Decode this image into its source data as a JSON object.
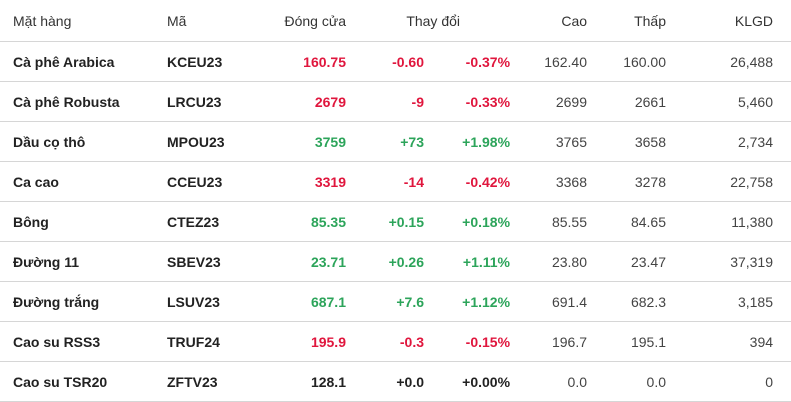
{
  "headers": {
    "name": "Mặt hàng",
    "code": "Mã",
    "close": "Đóng cửa",
    "change": "Thay đổi",
    "high": "Cao",
    "low": "Thấp",
    "volume": "KLGD"
  },
  "colors": {
    "up": "#2ca45a",
    "down": "#e0163d",
    "flat": "#222222"
  },
  "rows": [
    {
      "name": "Cà phê Arabica",
      "code": "KCEU23",
      "close": "160.75",
      "change": "-0.60",
      "pct": "-0.37%",
      "high": "162.40",
      "low": "160.00",
      "volume": "26,488",
      "dir": "down"
    },
    {
      "name": "Cà phê Robusta",
      "code": "LRCU23",
      "close": "2679",
      "change": "-9",
      "pct": "-0.33%",
      "high": "2699",
      "low": "2661",
      "volume": "5,460",
      "dir": "down"
    },
    {
      "name": "Dầu cọ thô",
      "code": "MPOU23",
      "close": "3759",
      "change": "+73",
      "pct": "+1.98%",
      "high": "3765",
      "low": "3658",
      "volume": "2,734",
      "dir": "up"
    },
    {
      "name": "Ca cao",
      "code": "CCEU23",
      "close": "3319",
      "change": "-14",
      "pct": "-0.42%",
      "high": "3368",
      "low": "3278",
      "volume": "22,758",
      "dir": "down"
    },
    {
      "name": "Bông",
      "code": "CTEZ23",
      "close": "85.35",
      "change": "+0.15",
      "pct": "+0.18%",
      "high": "85.55",
      "low": "84.65",
      "volume": "11,380",
      "dir": "up"
    },
    {
      "name": "Đường 11",
      "code": "SBEV23",
      "close": "23.71",
      "change": "+0.26",
      "pct": "+1.11%",
      "high": "23.80",
      "low": "23.47",
      "volume": "37,319",
      "dir": "up"
    },
    {
      "name": "Đường trắng",
      "code": "LSUV23",
      "close": "687.1",
      "change": "+7.6",
      "pct": "+1.12%",
      "high": "691.4",
      "low": "682.3",
      "volume": "3,185",
      "dir": "up"
    },
    {
      "name": "Cao su RSS3",
      "code": "TRUF24",
      "close": "195.9",
      "change": "-0.3",
      "pct": "-0.15%",
      "high": "196.7",
      "low": "195.1",
      "volume": "394",
      "dir": "down"
    },
    {
      "name": "Cao su TSR20",
      "code": "ZFTV23",
      "close": "128.1",
      "change": "+0.0",
      "pct": "+0.00%",
      "high": "0.0",
      "low": "0.0",
      "volume": "0",
      "dir": "flat"
    }
  ]
}
